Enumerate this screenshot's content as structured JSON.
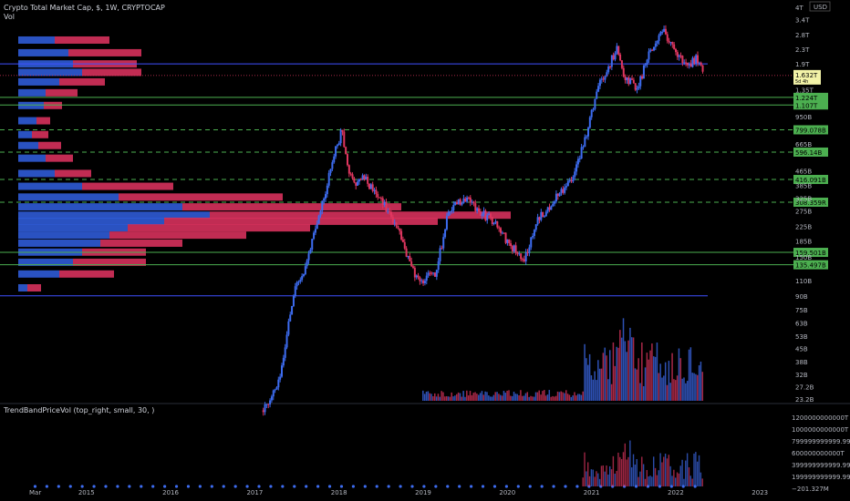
{
  "header": {
    "title": "Crypto Total Market Cap, $, 1W, CRYPTOCAP",
    "vol_label": "Vol",
    "currency": "USD",
    "indicator_label": "TrendBandPriceVol (top_right, small, 30, )"
  },
  "price_axis": {
    "labels": [
      "4T",
      "3.4T",
      "2.8T",
      "2.3T",
      "1.9T",
      "1.35T",
      "950B",
      "665B",
      "465B",
      "385B",
      "325B",
      "275B",
      "225B",
      "185B",
      "150B",
      "110B",
      "90B",
      "75B",
      "63B",
      "53B",
      "45B",
      "38B",
      "32B",
      "27.2B",
      "23.2B"
    ],
    "current_price": "1.632T",
    "current_sub": "5d 4h"
  },
  "levels": {
    "solid_green": [
      "1.224T",
      "1.107T",
      "159.501B",
      "135.497B"
    ],
    "dashed_green": [
      "799.078B",
      "596.14B",
      "416.091B",
      "308.359R"
    ],
    "blue_lines": [
      "1.9T",
      "90B"
    ]
  },
  "indicator_axis": {
    "labels": [
      "1200000000000T",
      "1000000000000T",
      "799999999999.99T",
      "600000000000T",
      "399999999999.99T",
      "199999999999.99T",
      "−201.327M"
    ]
  },
  "time_axis": {
    "labels": [
      "Mar",
      "2015",
      "2016",
      "2017",
      "2018",
      "2019",
      "2020",
      "2021",
      "2022",
      "2023"
    ]
  },
  "colors": {
    "background": "#000000",
    "up": "#3d6cf0",
    "down": "#e0365f",
    "level_green": "#4caf50",
    "level_blue": "#3f51ff",
    "profile_blue": "#2f5bd6",
    "profile_red": "#d6315c"
  },
  "chart_data": {
    "type": "line",
    "scale": "log",
    "x_range": [
      2014.2,
      2023.3
    ],
    "y_range_usd": [
      20000000000,
      4000000000000
    ],
    "price_path": {
      "x": [
        2017.1,
        2017.3,
        2017.45,
        2017.6,
        2017.8,
        2017.95,
        2018.03,
        2018.15,
        2018.3,
        2018.5,
        2018.7,
        2018.85,
        2018.95,
        2019.15,
        2019.3,
        2019.5,
        2019.65,
        2019.8,
        2019.95,
        2020.2,
        2020.35,
        2020.6,
        2020.8,
        2020.95,
        2021.1,
        2021.3,
        2021.38,
        2021.55,
        2021.7,
        2021.85,
        2022.0,
        2022.15,
        2022.25,
        2022.33
      ],
      "y": [
        20,
        30,
        90,
        130,
        300,
        600,
        780,
        400,
        420,
        320,
        220,
        130,
        110,
        120,
        280,
        330,
        270,
        250,
        200,
        140,
        240,
        340,
        450,
        800,
        1500,
        2300,
        1600,
        1400,
        2300,
        2900,
        2200,
        1800,
        2100,
        1630
      ]
    },
    "volume_bars": {
      "note": "weekly volume, rises sharply from 2021"
    },
    "volume_profile": {
      "price_levels": [
        2600,
        2200,
        1900,
        1700,
        1500,
        1300,
        1100,
        900,
        750,
        650,
        550,
        450,
        380,
        330,
        290,
        260,
        240,
        220,
        200,
        180,
        160,
        140,
        120,
        100
      ],
      "buy": [
        40,
        55,
        60,
        70,
        45,
        30,
        28,
        20,
        15,
        22,
        30,
        40,
        70,
        110,
        180,
        210,
        160,
        120,
        100,
        90,
        70,
        60,
        45,
        10
      ],
      "sell": [
        60,
        80,
        70,
        65,
        50,
        35,
        20,
        15,
        18,
        25,
        30,
        40,
        100,
        180,
        240,
        330,
        300,
        200,
        150,
        90,
        70,
        80,
        60,
        15
      ]
    }
  }
}
